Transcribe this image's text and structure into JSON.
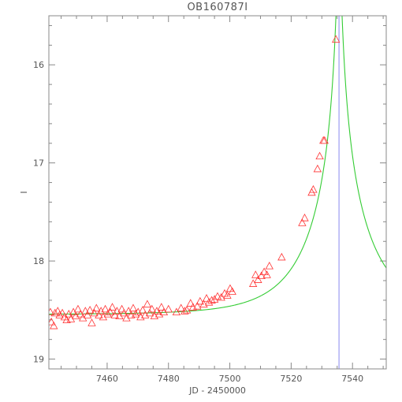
{
  "chart_data": {
    "type": "scatter",
    "title": "OB160787I",
    "xlabel": "JD - 2450000",
    "ylabel": "I",
    "xlim": [
      7441,
      7551
    ],
    "ylim": [
      19.1,
      15.5
    ],
    "y_inverted": true,
    "xticks": [
      7460,
      7480,
      7500,
      7520,
      7540
    ],
    "yticks": [
      16,
      17,
      18,
      19
    ],
    "grid": false,
    "colors": {
      "data": "#ff3333",
      "model": "#33cc33",
      "peak_marker": "#8888ee",
      "frame": "#888888"
    },
    "peak_marker_x": 7535.6,
    "model": {
      "baseline_mag": 18.545,
      "t0": 7535.6,
      "tE": 20,
      "u0": 0.03,
      "blend_fraction": 0.96
    },
    "series": [
      {
        "marker": "open-triangle",
        "points": [
          [
            7441.5,
            18.52
          ],
          [
            7441.8,
            18.62
          ],
          [
            7442.6,
            18.66
          ],
          [
            7443.0,
            18.53
          ],
          [
            7443.9,
            18.51
          ],
          [
            7444.5,
            18.55
          ],
          [
            7445.4,
            18.53
          ],
          [
            7446.1,
            18.57
          ],
          [
            7446.8,
            18.6
          ],
          [
            7447.5,
            18.54
          ],
          [
            7448.2,
            18.59
          ],
          [
            7449.0,
            18.52
          ],
          [
            7449.8,
            18.56
          ],
          [
            7450.5,
            18.49
          ],
          [
            7451.3,
            18.54
          ],
          [
            7452.1,
            18.58
          ],
          [
            7452.9,
            18.51
          ],
          [
            7453.6,
            18.55
          ],
          [
            7454.4,
            18.5
          ],
          [
            7455.0,
            18.63
          ],
          [
            7455.8,
            18.53
          ],
          [
            7456.5,
            18.48
          ],
          [
            7457.3,
            18.55
          ],
          [
            7458.0,
            18.51
          ],
          [
            7458.7,
            18.57
          ],
          [
            7459.4,
            18.49
          ],
          [
            7460.2,
            18.54
          ],
          [
            7461.0,
            18.52
          ],
          [
            7461.7,
            18.47
          ],
          [
            7462.5,
            18.55
          ],
          [
            7463.2,
            18.51
          ],
          [
            7464.0,
            18.56
          ],
          [
            7464.8,
            18.49
          ],
          [
            7465.5,
            18.53
          ],
          [
            7466.3,
            18.58
          ],
          [
            7467.0,
            18.51
          ],
          [
            7467.8,
            18.55
          ],
          [
            7468.5,
            18.48
          ],
          [
            7469.3,
            18.54
          ],
          [
            7470.1,
            18.52
          ],
          [
            7470.9,
            18.57
          ],
          [
            7471.6,
            18.5
          ],
          [
            7472.4,
            18.55
          ],
          [
            7473.1,
            18.44
          ],
          [
            7473.9,
            18.53
          ],
          [
            7474.6,
            18.49
          ],
          [
            7475.4,
            18.56
          ],
          [
            7476.2,
            18.51
          ],
          [
            7477.0,
            18.54
          ],
          [
            7477.7,
            18.47
          ],
          [
            7478.5,
            18.52
          ],
          [
            7480.0,
            18.49
          ],
          [
            7482.6,
            18.52
          ],
          [
            7484.1,
            18.48
          ],
          [
            7485.3,
            18.51
          ],
          [
            7486.0,
            18.5
          ],
          [
            7487.2,
            18.43
          ],
          [
            7488.0,
            18.47
          ],
          [
            7489.4,
            18.46
          ],
          [
            7490.3,
            18.41
          ],
          [
            7491.5,
            18.44
          ],
          [
            7492.4,
            18.38
          ],
          [
            7493.2,
            18.42
          ],
          [
            7494.1,
            18.4
          ],
          [
            7495.0,
            18.39
          ],
          [
            7496.0,
            18.36
          ],
          [
            7497.2,
            18.37
          ],
          [
            7498.3,
            18.33
          ],
          [
            7499.2,
            18.35
          ],
          [
            7500.1,
            18.28
          ],
          [
            7500.8,
            18.31
          ],
          [
            7507.6,
            18.23
          ],
          [
            7508.4,
            18.14
          ],
          [
            7509.2,
            18.19
          ],
          [
            7510.3,
            18.15
          ],
          [
            7511.2,
            18.11
          ],
          [
            7512.1,
            18.14
          ],
          [
            7512.9,
            18.05
          ],
          [
            7516.9,
            17.96
          ],
          [
            7523.6,
            17.61
          ],
          [
            7524.4,
            17.56
          ],
          [
            7526.7,
            17.3
          ],
          [
            7527.2,
            17.27
          ],
          [
            7528.6,
            17.06
          ],
          [
            7529.3,
            16.93
          ],
          [
            7530.5,
            16.77
          ],
          [
            7530.9,
            16.77
          ],
          [
            7534.6,
            15.74
          ]
        ]
      }
    ]
  }
}
